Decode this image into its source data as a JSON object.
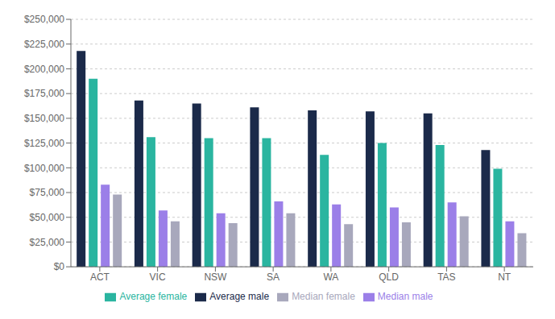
{
  "chart_data": {
    "type": "bar",
    "categories": [
      "ACT",
      "VIC",
      "NSW",
      "SA",
      "WA",
      "QLD",
      "TAS",
      "NT"
    ],
    "series": [
      {
        "name": "Average male",
        "color": "#1b2a4a",
        "values": [
          218000,
          168000,
          165000,
          161000,
          158000,
          157000,
          155000,
          118000
        ]
      },
      {
        "name": "Average female",
        "color": "#2ab5a0",
        "values": [
          190000,
          131000,
          130000,
          130000,
          113000,
          125000,
          123000,
          99000
        ]
      },
      {
        "name": "Median male",
        "color": "#9b7fe8",
        "values": [
          83000,
          57000,
          54000,
          66000,
          63000,
          60000,
          65000,
          46000
        ]
      },
      {
        "name": "Median female",
        "color": "#a8a8bc",
        "values": [
          73000,
          46000,
          44000,
          54000,
          43000,
          45000,
          51000,
          34000
        ]
      }
    ],
    "ylim": [
      0,
      250000
    ],
    "yticks": [
      {
        "value": 0,
        "label": "$0"
      },
      {
        "value": 25000,
        "label": "$25,000"
      },
      {
        "value": 50000,
        "label": "$50,000"
      },
      {
        "value": 75000,
        "label": "$75,000"
      },
      {
        "value": 100000,
        "label": "$100,000"
      },
      {
        "value": 125000,
        "label": "$125,000"
      },
      {
        "value": 150000,
        "label": "$150,000"
      },
      {
        "value": 175000,
        "label": "$175,000"
      },
      {
        "value": 200000,
        "label": "$200,000"
      },
      {
        "value": 225000,
        "label": "$225,000"
      },
      {
        "value": 250000,
        "label": "$250,000"
      }
    ],
    "grid": true,
    "legend": "bottom"
  }
}
